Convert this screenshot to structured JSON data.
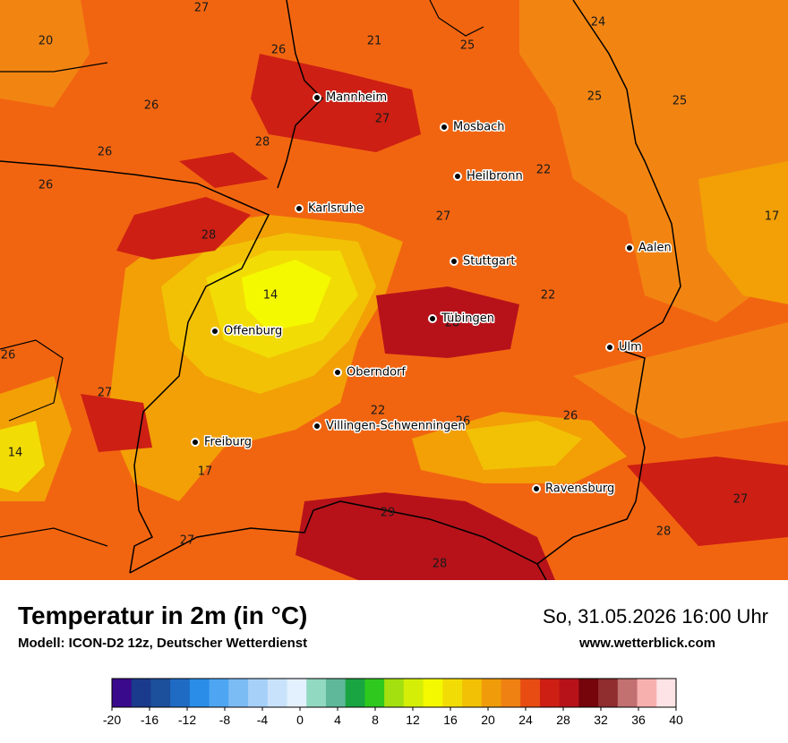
{
  "header": {
    "title": "Temperatur in 2m (in °C)",
    "model": "Modell: ICON-D2 12z, Deutscher Wetterdienst",
    "datetime": "So, 31.05.2026 16:00 Uhr",
    "website": "www.wetterblick.com"
  },
  "cities": [
    {
      "name": "Mannheim"
    },
    {
      "name": "Mosbach"
    },
    {
      "name": "Heilbronn"
    },
    {
      "name": "Karlsruhe"
    },
    {
      "name": "Stuttgart"
    },
    {
      "name": "Aalen"
    },
    {
      "name": "Tübingen"
    },
    {
      "name": "Offenburg"
    },
    {
      "name": "Oberndorf"
    },
    {
      "name": "Ulm"
    },
    {
      "name": "Villingen-Schwenningen"
    },
    {
      "name": "Freiburg"
    },
    {
      "name": "Ravensburg"
    }
  ],
  "temperature_labels": [
    "27",
    "20",
    "26",
    "21",
    "25",
    "24",
    "25",
    "25",
    "26",
    "27",
    "28",
    "26",
    "22",
    "26",
    "27",
    "17",
    "28",
    "14",
    "22",
    "26",
    "28",
    "27",
    "22",
    "26",
    "14",
    "26",
    "17",
    "28",
    "27",
    "27",
    "29",
    "28"
  ],
  "legend": {
    "colors": [
      "#3a0a8c",
      "#1a3a8c",
      "#1c4f9c",
      "#1f6bc4",
      "#2a8de8",
      "#4ea6f2",
      "#7cbcf5",
      "#a6d0f7",
      "#c8e2fb",
      "#e3f0fd",
      "#92d9c1",
      "#5fb899",
      "#19a541",
      "#2ec81e",
      "#a4e00f",
      "#d4ee08",
      "#f5f900",
      "#f2dc05",
      "#f2c106",
      "#f09c0a",
      "#ef8112",
      "#e84c12",
      "#cd1f14",
      "#b7121a",
      "#75040b",
      "#8f2d2f",
      "#c27070",
      "#f8b0ae",
      "#fde3e5"
    ],
    "ticks": [
      "-20",
      "-16",
      "-12",
      "-8",
      "-4",
      "0",
      "4",
      "8",
      "12",
      "16",
      "20",
      "24",
      "28",
      "32",
      "36",
      "40"
    ]
  }
}
